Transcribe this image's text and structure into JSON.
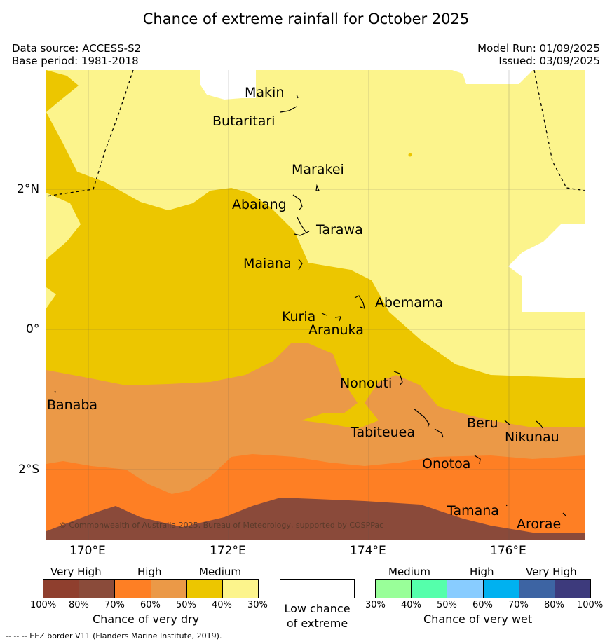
{
  "title": "Chance of extreme rainfall for October 2025",
  "source": {
    "data_source": "Data source: ACCESS-S2",
    "base_period": "Base period: 1981-2018",
    "model_run": "Model Run: 01/09/2025",
    "issued": "Issued: 03/09/2025"
  },
  "map": {
    "lat_ticks": [
      "2°N",
      "0°",
      "2°S"
    ],
    "lon_ticks": [
      "170°E",
      "172°E",
      "174°E",
      "176°E"
    ],
    "islands": [
      "Makin",
      "Butaritari",
      "Marakei",
      "Abaiang",
      "Tarawa",
      "Maiana",
      "Abemama",
      "Kuria",
      "Aranuka",
      "Nonouti",
      "Banaba",
      "Beru",
      "Nikunau",
      "Tabiteuea",
      "Onotoa",
      "Tamana",
      "Arorae"
    ],
    "copyright": "© Commonwealth of Australia 2025, Bureau of Meteorology, supported by COSPPac",
    "categories": [
      "Very High dry",
      "High dry",
      "Medium dry",
      "Low chance of extreme"
    ],
    "colors": {
      "medium_dry_light": "#fcf48c",
      "medium_dry_dark": "#ecc600",
      "high_dry_light": "#eb9947",
      "high_dry_dark": "#fe7f24",
      "very_high_dry_light": "#8a4a3a",
      "low": "#ffffff"
    }
  },
  "legend": {
    "dry": {
      "headers": [
        "Very High",
        "High",
        "Medium"
      ],
      "percent_labels": [
        "100%",
        "80%",
        "70%",
        "60%",
        "50%",
        "40%",
        "30%"
      ],
      "colors": [
        "#8f3f2e",
        "#8a4b3a",
        "#fe7f24",
        "#eb9947",
        "#ecc600",
        "#fcf48c"
      ],
      "title": "Chance of very dry"
    },
    "low": {
      "label_line1": "Low chance",
      "label_line2": "of extreme"
    },
    "wet": {
      "headers": [
        "Medium",
        "High",
        "Very High"
      ],
      "percent_labels": [
        "30%",
        "40%",
        "50%",
        "60%",
        "70%",
        "80%",
        "100%"
      ],
      "colors": [
        "#99ff99",
        "#55ffab",
        "#88ccff",
        "#00b1f0",
        "#3d64a3",
        "#3d3a7c"
      ],
      "title": "Chance of very wet"
    }
  },
  "footer": "--  --  -- EEZ border V11 (Flanders Marine Institute, 2019)."
}
